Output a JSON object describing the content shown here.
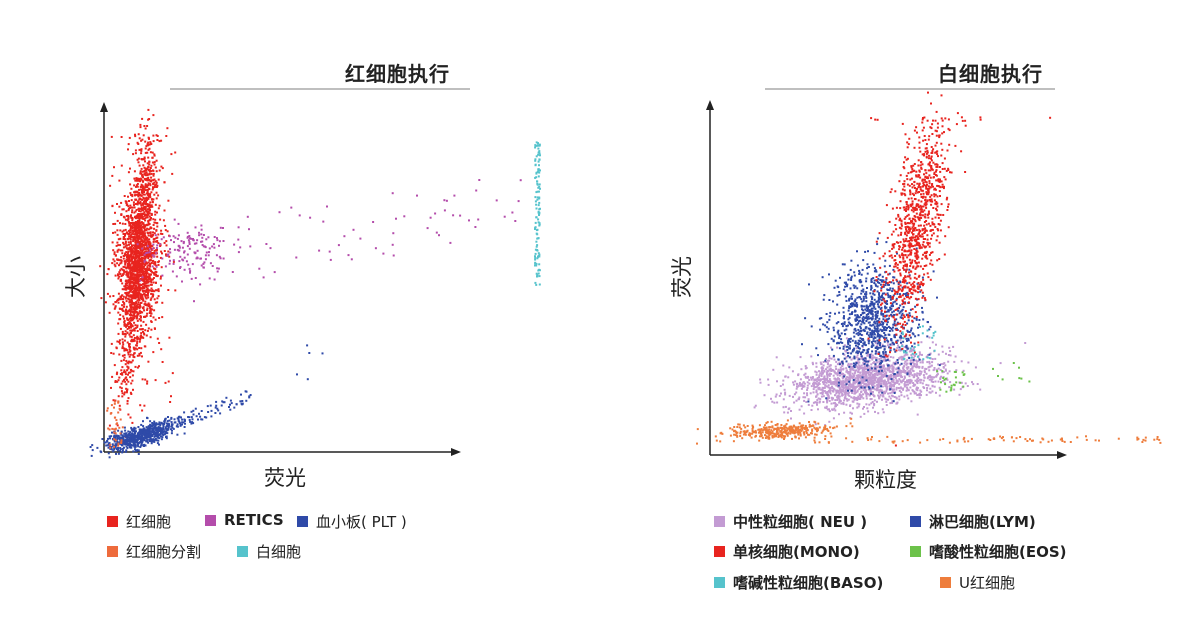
{
  "chart_data": [
    {
      "type": "scatter",
      "title": "红细胞执行",
      "xlabel": "荧光",
      "ylabel": "大小",
      "legend": "bottom",
      "series": [
        {
          "name": "红细胞",
          "color": "#e8241f"
        },
        {
          "name": "RETICS",
          "color": "#b44dab"
        },
        {
          "name": "血小板( PLT )",
          "color": "#2f4aa8"
        },
        {
          "name": "红细胞分割",
          "color": "#ee6b3c"
        },
        {
          "name": "白细胞",
          "color": "#56c3cc"
        }
      ]
    },
    {
      "type": "scatter",
      "title": "白细胞执行",
      "xlabel": "颗粒度",
      "ylabel": "荧光",
      "legend": "bottom",
      "series": [
        {
          "name": "中性粒细胞( NEU )",
          "color": "#c39bd3"
        },
        {
          "name": "淋巴细胞(LYM)",
          "color": "#2f4aa8"
        },
        {
          "name": "单核细胞(MONO)",
          "color": "#e8241f"
        },
        {
          "name": "嗜酸性粒细胞(EOS)",
          "color": "#6cc24a"
        },
        {
          "name": "嗜碱性粒细胞(BASO)",
          "color": "#56c3cc"
        },
        {
          "name": "U红细胞",
          "color": "#ee7d3c"
        }
      ]
    }
  ]
}
